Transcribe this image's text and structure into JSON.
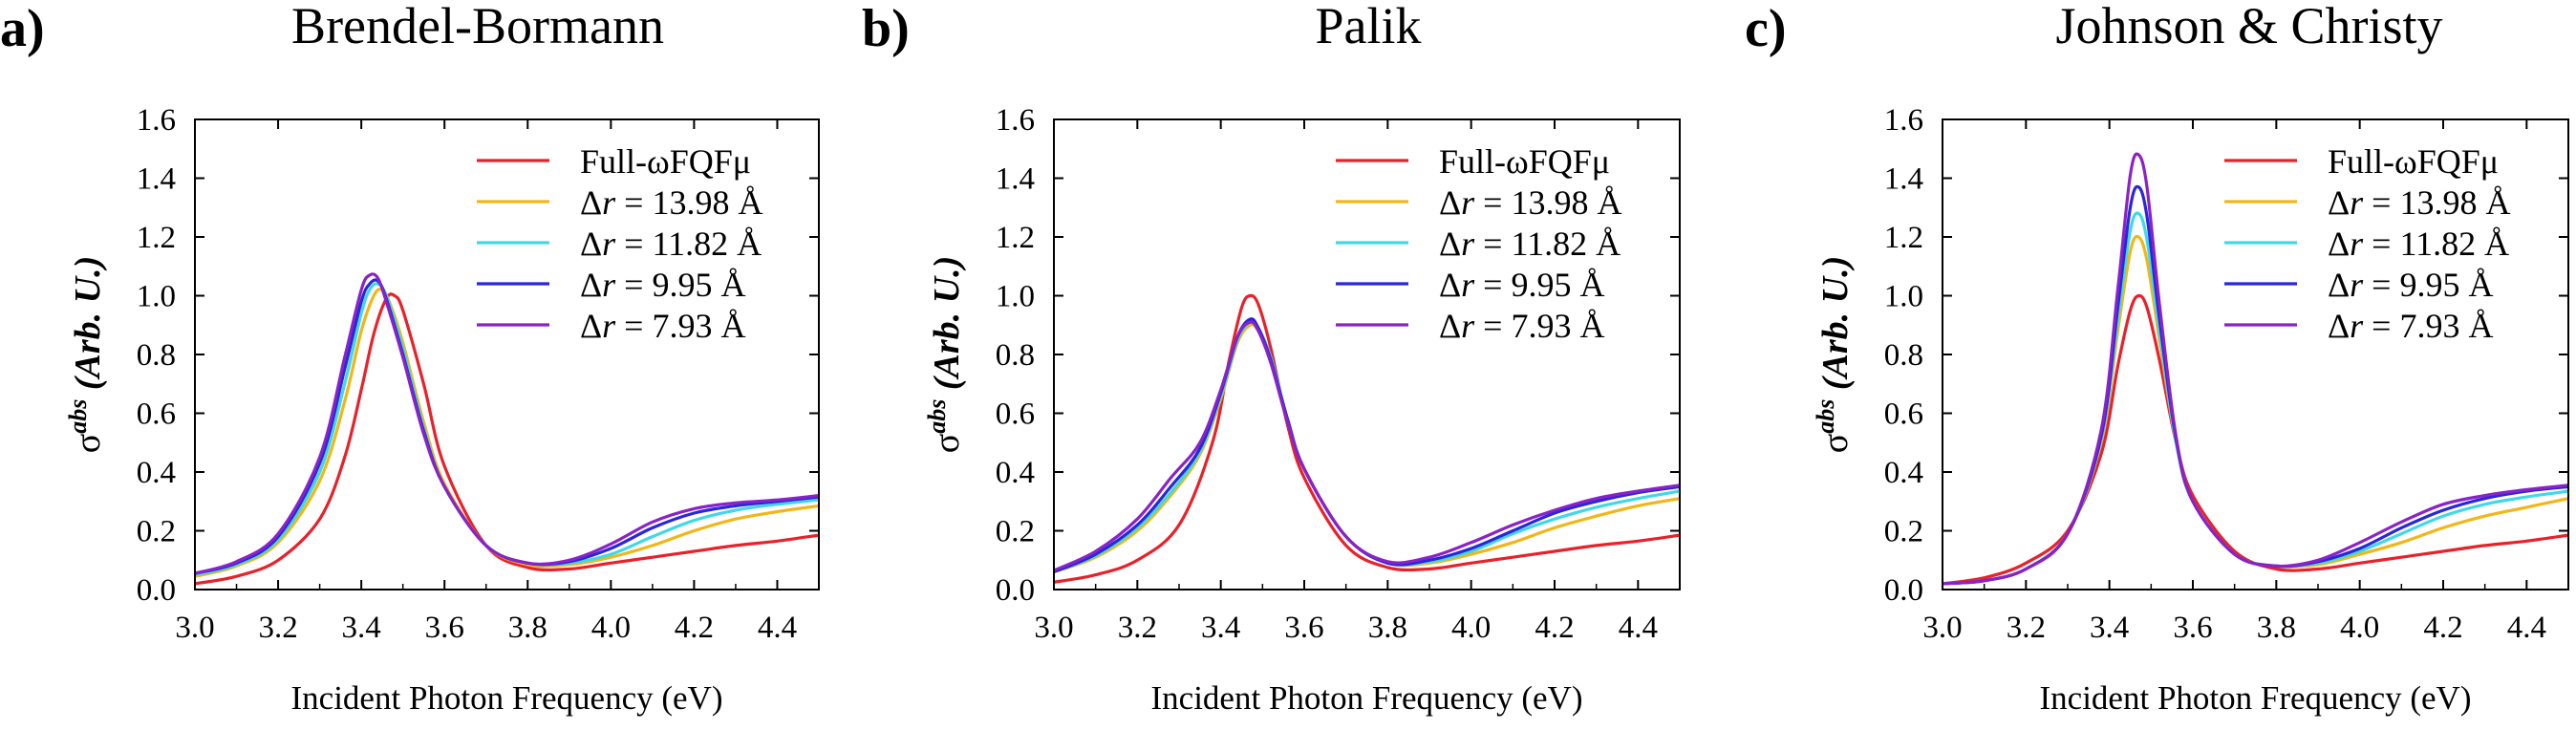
{
  "chart_data": [
    {
      "type": "line",
      "panel_label": "a)",
      "title": "Brendel-Bormann",
      "xlabel": "Incident Photon Frequency (eV)",
      "ylabel_main": "σ",
      "ylabel_sup": "abs",
      "ylabel_rest": " (Arb. U.)",
      "xlim": [
        3.0,
        4.5
      ],
      "ylim": [
        0.0,
        1.6
      ],
      "xticks": [
        "3.0",
        "3.2",
        "3.4",
        "3.6",
        "3.8",
        "4.0",
        "4.2",
        "4.4"
      ],
      "yticks": [
        "0.0",
        "0.2",
        "0.4",
        "0.6",
        "0.8",
        "1.0",
        "1.2",
        "1.4",
        "1.6"
      ],
      "grid": false,
      "legend_position": "top-right",
      "series": [
        {
          "name": "Full-ωFQFμ",
          "name_prefix": "",
          "name_var": "",
          "name_value": "",
          "color": "#e8212a",
          "x": [
            3.0,
            3.1,
            3.2,
            3.3,
            3.36,
            3.4,
            3.43,
            3.46,
            3.48,
            3.5,
            3.55,
            3.6,
            3.7,
            3.8,
            3.9,
            4.0,
            4.1,
            4.2,
            4.3,
            4.4,
            4.5
          ],
          "y": [
            0.02,
            0.045,
            0.1,
            0.24,
            0.45,
            0.68,
            0.87,
            0.99,
            1.0,
            0.95,
            0.7,
            0.42,
            0.15,
            0.075,
            0.07,
            0.09,
            0.11,
            0.13,
            0.15,
            0.165,
            0.185
          ]
        },
        {
          "name": "",
          "name_prefix": "Δ",
          "name_var": "r",
          "name_value": " = 13.98 Å",
          "color": "#f2b616",
          "x": [
            3.0,
            3.1,
            3.2,
            3.3,
            3.36,
            3.4,
            3.43,
            3.45,
            3.47,
            3.5,
            3.55,
            3.6,
            3.7,
            3.8,
            3.9,
            4.0,
            4.1,
            4.2,
            4.3,
            4.4,
            4.5
          ],
          "y": [
            0.045,
            0.08,
            0.16,
            0.37,
            0.64,
            0.88,
            1.0,
            1.02,
            0.97,
            0.84,
            0.57,
            0.36,
            0.15,
            0.085,
            0.085,
            0.11,
            0.15,
            0.2,
            0.24,
            0.265,
            0.285
          ]
        },
        {
          "name": "",
          "name_prefix": "Δ",
          "name_var": "r",
          "name_value": " = 11.82 Å",
          "color": "#3fd9e6",
          "x": [
            3.0,
            3.1,
            3.2,
            3.3,
            3.36,
            3.4,
            3.42,
            3.44,
            3.46,
            3.5,
            3.55,
            3.6,
            3.7,
            3.8,
            3.9,
            4.0,
            4.1,
            4.2,
            4.3,
            4.4,
            4.5
          ],
          "y": [
            0.05,
            0.085,
            0.17,
            0.4,
            0.7,
            0.94,
            1.02,
            1.04,
            1.0,
            0.82,
            0.55,
            0.35,
            0.15,
            0.09,
            0.09,
            0.12,
            0.18,
            0.235,
            0.27,
            0.29,
            0.305
          ]
        },
        {
          "name": "",
          "name_prefix": "Δ",
          "name_var": "r",
          "name_value": " = 9.95 Å",
          "color": "#2a26d9",
          "x": [
            3.0,
            3.1,
            3.2,
            3.3,
            3.36,
            3.4,
            3.42,
            3.44,
            3.46,
            3.5,
            3.55,
            3.6,
            3.7,
            3.8,
            3.9,
            4.0,
            4.1,
            4.2,
            4.3,
            4.4,
            4.5
          ],
          "y": [
            0.055,
            0.09,
            0.18,
            0.43,
            0.75,
            0.98,
            1.04,
            1.05,
            0.99,
            0.8,
            0.54,
            0.35,
            0.15,
            0.09,
            0.095,
            0.14,
            0.21,
            0.26,
            0.285,
            0.3,
            0.315
          ]
        },
        {
          "name": "",
          "name_prefix": "Δ",
          "name_var": "r",
          "name_value": " = 7.93 Å",
          "color": "#8a22c8",
          "x": [
            3.0,
            3.1,
            3.2,
            3.3,
            3.36,
            3.4,
            3.42,
            3.44,
            3.46,
            3.5,
            3.55,
            3.6,
            3.7,
            3.8,
            3.9,
            4.0,
            4.1,
            4.2,
            4.3,
            4.4,
            4.5
          ],
          "y": [
            0.055,
            0.095,
            0.19,
            0.45,
            0.79,
            1.02,
            1.07,
            1.06,
            0.98,
            0.79,
            0.53,
            0.35,
            0.15,
            0.09,
            0.1,
            0.155,
            0.23,
            0.275,
            0.295,
            0.305,
            0.32
          ]
        }
      ]
    },
    {
      "type": "line",
      "panel_label": "b)",
      "title": "Palik",
      "xlabel": "Incident Photon Frequency (eV)",
      "ylabel_main": "σ",
      "ylabel_sup": "abs",
      "ylabel_rest": " (Arb. U.)",
      "xlim": [
        3.0,
        4.5
      ],
      "ylim": [
        0.0,
        1.6
      ],
      "xticks": [
        "3.0",
        "3.2",
        "3.4",
        "3.6",
        "3.8",
        "4.0",
        "4.2",
        "4.4"
      ],
      "yticks": [
        "0.0",
        "0.2",
        "0.4",
        "0.6",
        "0.8",
        "1.0",
        "1.2",
        "1.4",
        "1.6"
      ],
      "grid": false,
      "legend_position": "top-right",
      "series": [
        {
          "name": "Full-ωFQFμ",
          "name_prefix": "",
          "name_var": "",
          "name_value": "",
          "color": "#e8212a",
          "x": [
            3.0,
            3.1,
            3.2,
            3.3,
            3.38,
            3.42,
            3.45,
            3.47,
            3.49,
            3.52,
            3.56,
            3.6,
            3.7,
            3.8,
            3.9,
            4.0,
            4.1,
            4.2,
            4.3,
            4.4,
            4.5
          ],
          "y": [
            0.025,
            0.05,
            0.1,
            0.22,
            0.5,
            0.78,
            0.96,
            1.0,
            0.97,
            0.82,
            0.56,
            0.38,
            0.15,
            0.075,
            0.07,
            0.09,
            0.11,
            0.13,
            0.15,
            0.165,
            0.185
          ]
        },
        {
          "name": "",
          "name_prefix": "Δ",
          "name_var": "r",
          "name_value": " = 13.98 Å",
          "color": "#f2b616",
          "x": [
            3.0,
            3.1,
            3.2,
            3.28,
            3.35,
            3.4,
            3.44,
            3.47,
            3.49,
            3.52,
            3.56,
            3.6,
            3.7,
            3.8,
            3.9,
            4.0,
            4.1,
            4.2,
            4.3,
            4.4,
            4.5
          ],
          "y": [
            0.06,
            0.11,
            0.2,
            0.32,
            0.46,
            0.65,
            0.84,
            0.9,
            0.88,
            0.78,
            0.58,
            0.41,
            0.18,
            0.09,
            0.09,
            0.12,
            0.16,
            0.21,
            0.25,
            0.285,
            0.31
          ]
        },
        {
          "name": "",
          "name_prefix": "Δ",
          "name_var": "r",
          "name_value": " = 11.82 Å",
          "color": "#3fd9e6",
          "x": [
            3.0,
            3.1,
            3.2,
            3.28,
            3.35,
            3.4,
            3.44,
            3.47,
            3.49,
            3.52,
            3.56,
            3.6,
            3.7,
            3.8,
            3.9,
            4.0,
            4.1,
            4.2,
            4.3,
            4.4,
            4.5
          ],
          "y": [
            0.06,
            0.115,
            0.21,
            0.33,
            0.47,
            0.66,
            0.85,
            0.91,
            0.89,
            0.79,
            0.58,
            0.41,
            0.18,
            0.09,
            0.095,
            0.13,
            0.19,
            0.24,
            0.28,
            0.31,
            0.335
          ]
        },
        {
          "name": "",
          "name_prefix": "Δ",
          "name_var": "r",
          "name_value": " = 9.95 Å",
          "color": "#2a26d9",
          "x": [
            3.0,
            3.1,
            3.2,
            3.28,
            3.35,
            3.4,
            3.44,
            3.47,
            3.49,
            3.52,
            3.56,
            3.6,
            3.7,
            3.8,
            3.9,
            4.0,
            4.1,
            4.2,
            4.3,
            4.4,
            4.5
          ],
          "y": [
            0.06,
            0.12,
            0.22,
            0.35,
            0.48,
            0.67,
            0.86,
            0.92,
            0.89,
            0.78,
            0.58,
            0.41,
            0.18,
            0.09,
            0.1,
            0.14,
            0.2,
            0.26,
            0.3,
            0.33,
            0.35
          ]
        },
        {
          "name": "",
          "name_prefix": "Δ",
          "name_var": "r",
          "name_value": " = 7.93 Å",
          "color": "#8a22c8",
          "x": [
            3.0,
            3.1,
            3.2,
            3.28,
            3.35,
            3.4,
            3.44,
            3.47,
            3.49,
            3.52,
            3.56,
            3.6,
            3.7,
            3.8,
            3.9,
            4.0,
            4.1,
            4.2,
            4.3,
            4.4,
            4.5
          ],
          "y": [
            0.065,
            0.13,
            0.24,
            0.38,
            0.5,
            0.68,
            0.86,
            0.91,
            0.88,
            0.77,
            0.57,
            0.41,
            0.18,
            0.095,
            0.11,
            0.16,
            0.22,
            0.27,
            0.31,
            0.335,
            0.355
          ]
        }
      ]
    },
    {
      "type": "line",
      "panel_label": "c)",
      "title": "Johnson & Christy",
      "xlabel": "Incident Photon Frequency (eV)",
      "ylabel_main": "σ",
      "ylabel_sup": "abs",
      "ylabel_rest": " (Arb. U.)",
      "xlim": [
        3.0,
        4.5
      ],
      "ylim": [
        0.0,
        1.6
      ],
      "xticks": [
        "3.0",
        "3.2",
        "3.4",
        "3.6",
        "3.8",
        "4.0",
        "4.2",
        "4.4"
      ],
      "yticks": [
        "0.0",
        "0.2",
        "0.4",
        "0.6",
        "0.8",
        "1.0",
        "1.2",
        "1.4",
        "1.6"
      ],
      "grid": false,
      "legend_position": "top-right",
      "series": [
        {
          "name": "Full-ωFQFμ",
          "name_prefix": "",
          "name_var": "",
          "name_value": "",
          "color": "#e8212a",
          "x": [
            3.0,
            3.1,
            3.2,
            3.3,
            3.38,
            3.42,
            3.45,
            3.47,
            3.49,
            3.52,
            3.56,
            3.6,
            3.7,
            3.8,
            3.9,
            4.0,
            4.1,
            4.2,
            4.3,
            4.4,
            4.5
          ],
          "y": [
            0.02,
            0.04,
            0.09,
            0.2,
            0.46,
            0.76,
            0.95,
            1.0,
            0.96,
            0.78,
            0.5,
            0.32,
            0.13,
            0.07,
            0.07,
            0.09,
            0.11,
            0.13,
            0.15,
            0.165,
            0.185
          ]
        },
        {
          "name": "",
          "name_prefix": "Δ",
          "name_var": "r",
          "name_value": " = 13.98 Å",
          "color": "#f2b616",
          "x": [
            3.0,
            3.1,
            3.2,
            3.3,
            3.38,
            3.42,
            3.45,
            3.47,
            3.49,
            3.52,
            3.56,
            3.6,
            3.7,
            3.8,
            3.9,
            4.0,
            4.1,
            4.2,
            4.3,
            4.4,
            4.5
          ],
          "y": [
            0.02,
            0.03,
            0.07,
            0.19,
            0.5,
            0.88,
            1.15,
            1.2,
            1.12,
            0.85,
            0.5,
            0.3,
            0.12,
            0.08,
            0.085,
            0.12,
            0.16,
            0.21,
            0.25,
            0.28,
            0.31
          ]
        },
        {
          "name": "",
          "name_prefix": "Δ",
          "name_var": "r",
          "name_value": " = 11.82 Å",
          "color": "#3fd9e6",
          "x": [
            3.0,
            3.1,
            3.2,
            3.3,
            3.38,
            3.42,
            3.45,
            3.47,
            3.49,
            3.52,
            3.56,
            3.6,
            3.7,
            3.8,
            3.9,
            4.0,
            4.1,
            4.2,
            4.3,
            4.4,
            4.5
          ],
          "y": [
            0.02,
            0.03,
            0.07,
            0.19,
            0.51,
            0.92,
            1.22,
            1.28,
            1.19,
            0.88,
            0.5,
            0.3,
            0.12,
            0.08,
            0.09,
            0.13,
            0.19,
            0.25,
            0.29,
            0.315,
            0.335
          ]
        },
        {
          "name": "",
          "name_prefix": "Δ",
          "name_var": "r",
          "name_value": " = 9.95 Å",
          "color": "#2a26d9",
          "x": [
            3.0,
            3.1,
            3.2,
            3.3,
            3.38,
            3.42,
            3.45,
            3.47,
            3.49,
            3.52,
            3.56,
            3.6,
            3.7,
            3.8,
            3.9,
            4.0,
            4.1,
            4.2,
            4.3,
            4.4,
            4.5
          ],
          "y": [
            0.02,
            0.03,
            0.07,
            0.19,
            0.52,
            0.96,
            1.3,
            1.37,
            1.27,
            0.92,
            0.51,
            0.3,
            0.12,
            0.08,
            0.095,
            0.14,
            0.21,
            0.27,
            0.31,
            0.335,
            0.35
          ]
        },
        {
          "name": "",
          "name_prefix": "Δ",
          "name_var": "r",
          "name_value": " = 7.93 Å",
          "color": "#8a22c8",
          "x": [
            3.0,
            3.1,
            3.2,
            3.3,
            3.38,
            3.42,
            3.45,
            3.47,
            3.49,
            3.52,
            3.56,
            3.6,
            3.7,
            3.8,
            3.9,
            4.0,
            4.1,
            4.2,
            4.3,
            4.4,
            4.5
          ],
          "y": [
            0.02,
            0.03,
            0.07,
            0.19,
            0.54,
            1.02,
            1.41,
            1.48,
            1.37,
            0.97,
            0.52,
            0.3,
            0.12,
            0.08,
            0.1,
            0.16,
            0.23,
            0.29,
            0.32,
            0.34,
            0.355
          ]
        }
      ]
    }
  ]
}
